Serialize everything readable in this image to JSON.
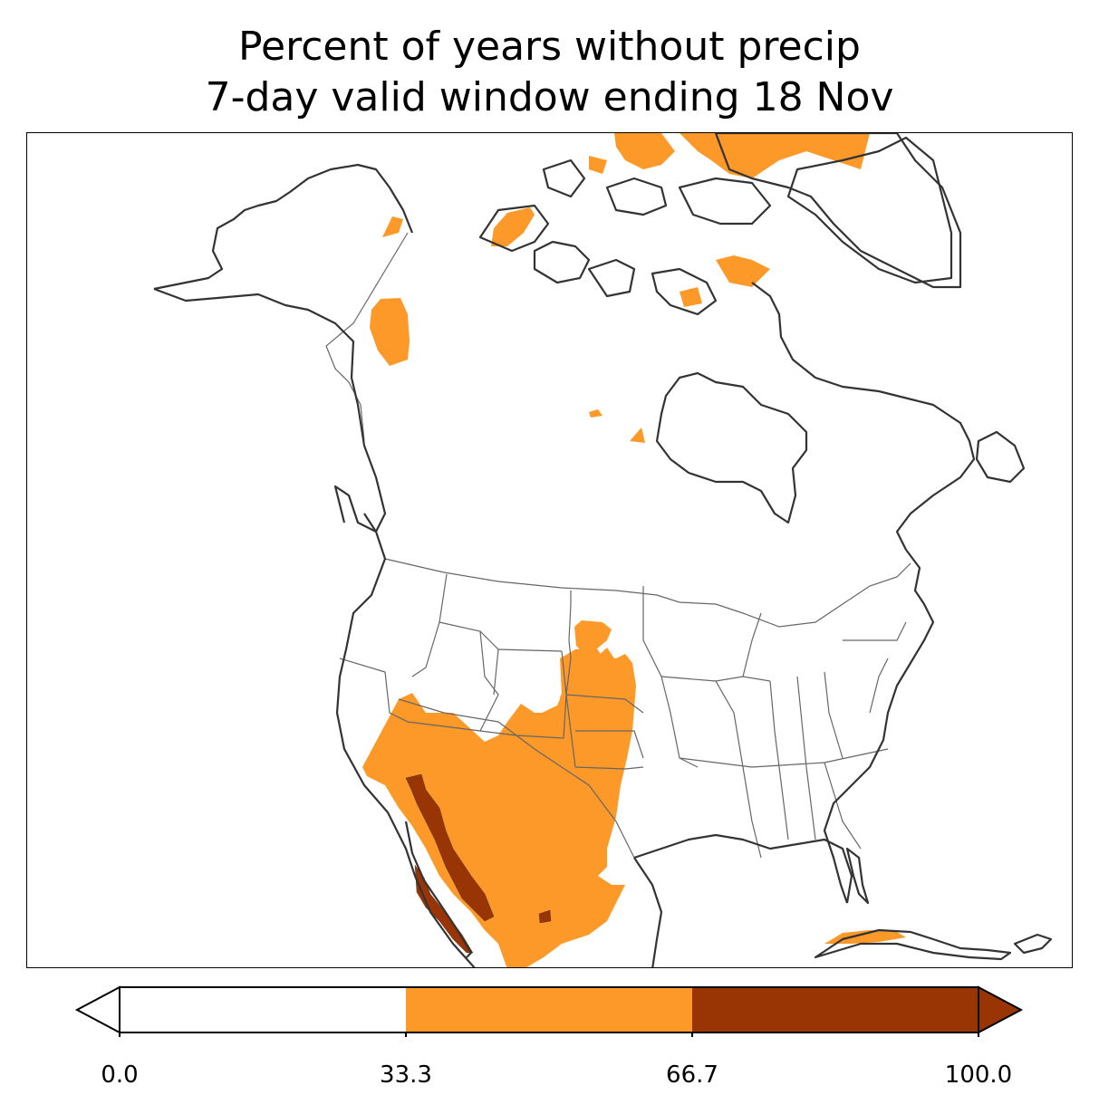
{
  "title": {
    "line1": "Percent of years without precip",
    "line2": "7-day valid window ending 18 Nov"
  },
  "legend": {
    "bins": [
      {
        "from": 0.0,
        "to": 33.3,
        "color": "#ffffff"
      },
      {
        "from": 33.3,
        "to": 66.7,
        "color": "#fd9929"
      },
      {
        "from": 66.7,
        "to": 100.0,
        "color": "#993404"
      }
    ],
    "extend": "both",
    "ticks": [
      "0.0",
      "33.3",
      "66.7",
      "100.0"
    ]
  },
  "colors": {
    "land_outline": "#333333",
    "state_border": "#666666",
    "mid_class": "#fd9929",
    "high_class": "#993404"
  },
  "map": {
    "projection": "North America regional",
    "coastlines": true,
    "state_borders": true,
    "shaded_regions": [
      {
        "name": "southwest-us-northern-mexico",
        "class": "33.3-66.7"
      },
      {
        "name": "great-plains",
        "class": "33.3-66.7"
      },
      {
        "name": "north-dakota",
        "class": "33.3-66.7"
      },
      {
        "name": "baja-and-sonora",
        "class": "66.7-100.0"
      },
      {
        "name": "arctic-archipelago",
        "class": "33.3-66.7"
      },
      {
        "name": "greenland-north",
        "class": "33.3-66.7"
      },
      {
        "name": "yukon-northwest-territories",
        "class": "33.3-66.7"
      },
      {
        "name": "cuba",
        "class": "33.3-66.7"
      }
    ]
  }
}
